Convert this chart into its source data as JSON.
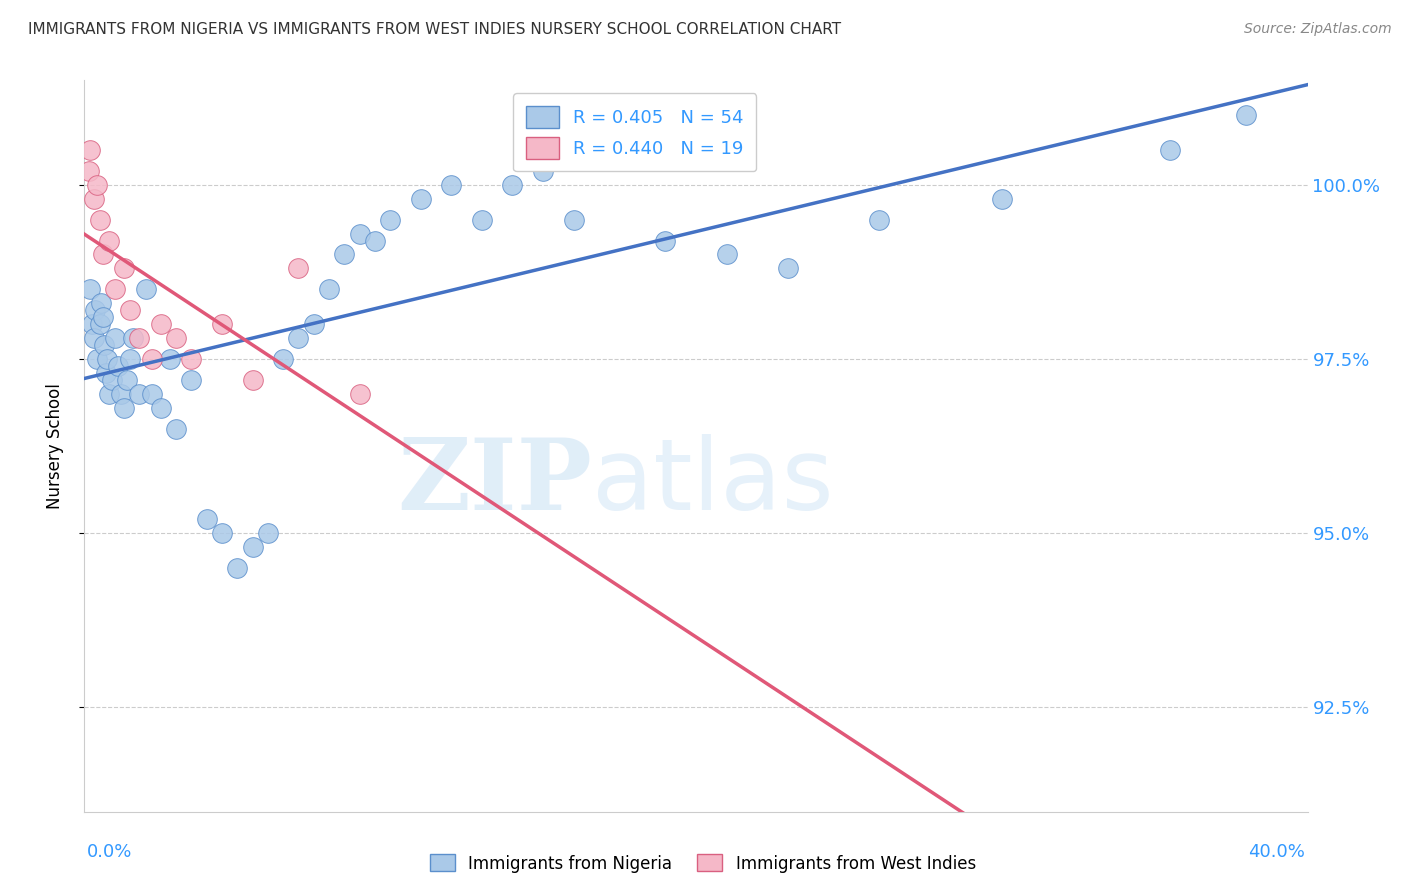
{
  "title": "IMMIGRANTS FROM NIGERIA VS IMMIGRANTS FROM WEST INDIES NURSERY SCHOOL CORRELATION CHART",
  "source": "Source: ZipAtlas.com",
  "ylabel": "Nursery School",
  "yticks": [
    92.5,
    95.0,
    97.5,
    100.0
  ],
  "ytick_labels": [
    "92.5%",
    "95.0%",
    "97.5%",
    "100.0%"
  ],
  "xmin": 0.0,
  "xmax": 40.0,
  "ymin": 91.0,
  "ymax": 101.5,
  "nigeria_R": 0.405,
  "nigeria_N": 54,
  "westindies_R": 0.44,
  "westindies_N": 19,
  "nigeria_color": "#aac9e8",
  "nigeria_edge_color": "#5b8fcc",
  "nigeria_line_color": "#4472c4",
  "westindies_color": "#f5b8c8",
  "westindies_edge_color": "#d96080",
  "westindies_line_color": "#e05878",
  "nigeria_x": [
    0.2,
    0.25,
    0.3,
    0.35,
    0.4,
    0.5,
    0.55,
    0.6,
    0.65,
    0.7,
    0.75,
    0.8,
    0.9,
    1.0,
    1.1,
    1.2,
    1.3,
    1.4,
    1.5,
    1.6,
    1.8,
    2.0,
    2.2,
    2.5,
    2.8,
    3.0,
    3.5,
    4.0,
    4.5,
    5.0,
    5.5,
    6.0,
    6.5,
    7.0,
    7.5,
    8.0,
    8.5,
    9.0,
    9.5,
    10.0,
    11.0,
    12.0,
    13.0,
    14.0,
    15.0,
    16.0,
    17.5,
    19.0,
    21.0,
    23.0,
    26.0,
    30.0,
    35.5,
    38.0
  ],
  "nigeria_y": [
    98.5,
    98.0,
    97.8,
    98.2,
    97.5,
    98.0,
    98.3,
    98.1,
    97.7,
    97.3,
    97.5,
    97.0,
    97.2,
    97.8,
    97.4,
    97.0,
    96.8,
    97.2,
    97.5,
    97.8,
    97.0,
    98.5,
    97.0,
    96.8,
    97.5,
    96.5,
    97.2,
    95.2,
    95.0,
    94.5,
    94.8,
    95.0,
    97.5,
    97.8,
    98.0,
    98.5,
    99.0,
    99.3,
    99.2,
    99.5,
    99.8,
    100.0,
    99.5,
    100.0,
    100.2,
    99.5,
    100.5,
    99.2,
    99.0,
    98.8,
    99.5,
    99.8,
    100.5,
    101.0
  ],
  "westindies_x": [
    0.15,
    0.2,
    0.3,
    0.4,
    0.5,
    0.6,
    0.8,
    1.0,
    1.3,
    1.5,
    1.8,
    2.2,
    2.5,
    3.0,
    3.5,
    4.5,
    5.5,
    7.0,
    9.0
  ],
  "westindies_y": [
    100.2,
    100.5,
    99.8,
    100.0,
    99.5,
    99.0,
    99.2,
    98.5,
    98.8,
    98.2,
    97.8,
    97.5,
    98.0,
    97.8,
    97.5,
    98.0,
    97.2,
    98.8,
    97.0
  ],
  "legend_label_nigeria": "Immigrants from Nigeria",
  "legend_label_westindies": "Immigrants from West Indies",
  "watermark_zip": "ZIP",
  "watermark_atlas": "atlas",
  "background_color": "#ffffff",
  "grid_color": "#cccccc",
  "axis_color": "#cccccc",
  "right_label_color": "#3399ff",
  "title_color": "#333333",
  "source_color": "#888888"
}
